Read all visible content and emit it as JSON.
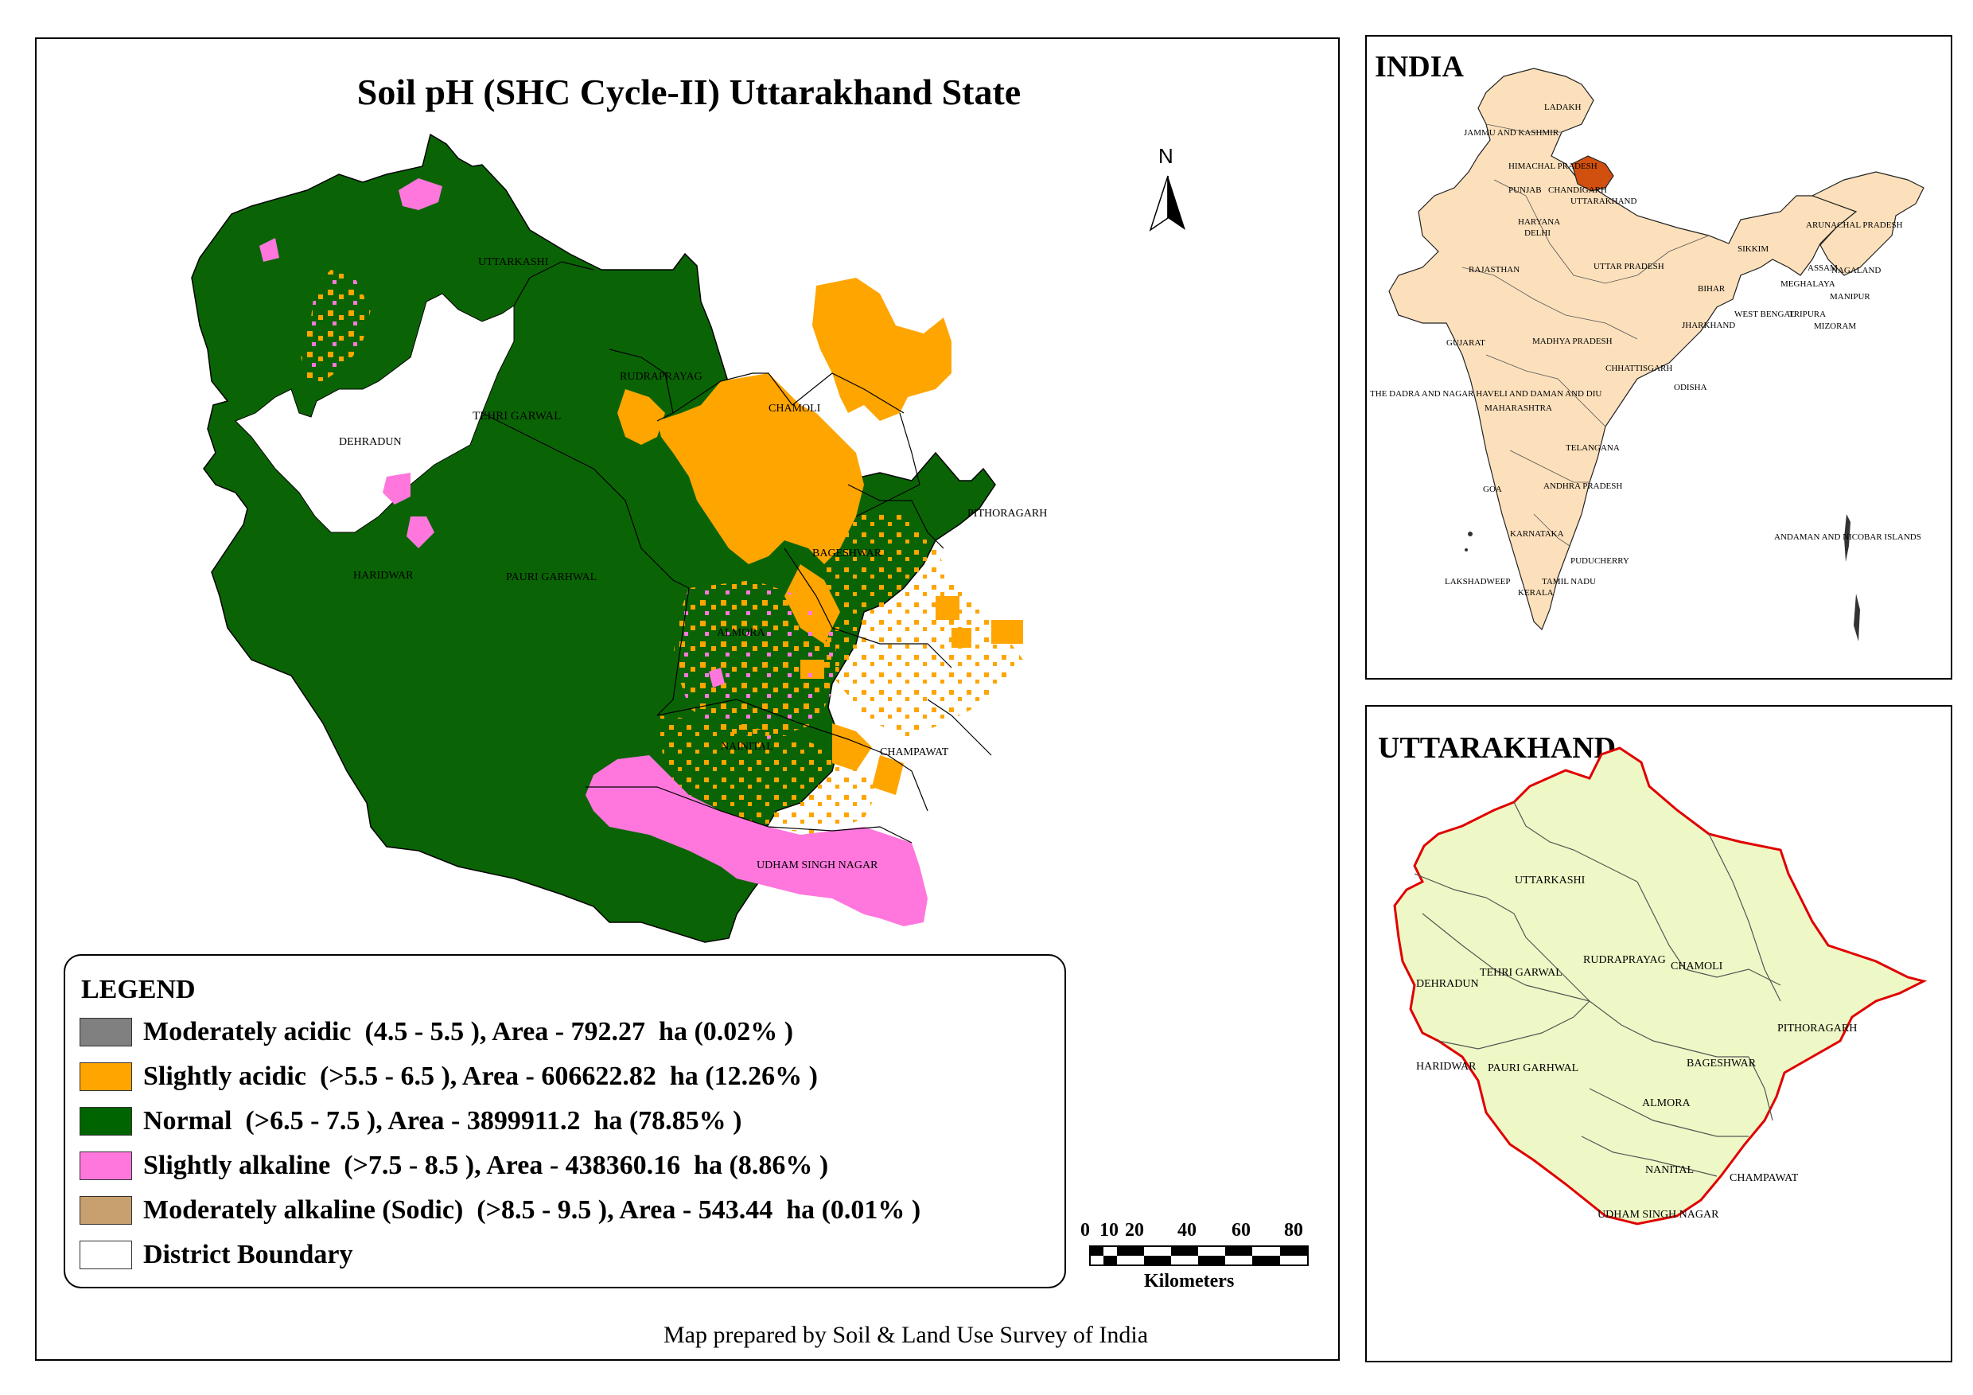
{
  "main": {
    "title": "Soil pH (SHC Cycle-II) Uttarakhand State",
    "north_label": "N",
    "districts": [
      "UTTARKASHI",
      "TEHRI GARWAL",
      "DEHRADUN",
      "RUDRAPRAYAG",
      "CHAMOLI",
      "PITHORAGARH",
      "BAGESHWAR",
      "ALMORA",
      "PAURI GARHWAL",
      "HARIDWAR",
      "NAINITAL",
      "CHAMPAWAT",
      "UDHAM SINGH NAGAR"
    ],
    "credit": "Map prepared by Soil & Land Use Survey of India"
  },
  "legend": {
    "title": "LEGEND",
    "items": [
      {
        "label": "Moderately acidic  (4.5 - 5.5 ), Area - 792.27  ha (0.02% )",
        "color": "#808080"
      },
      {
        "label": "Slightly acidic  (>5.5 - 6.5 ), Area - 606622.82  ha (12.26% )",
        "color": "#FFA500"
      },
      {
        "label": "Normal  (>6.5 - 7.5 ), Area - 3899911.2  ha (78.85% )",
        "color": "#006400"
      },
      {
        "label": "Slightly alkaline  (>7.5 - 8.5 ), Area - 438360.16  ha (8.86% )",
        "color": "#FF77DD"
      },
      {
        "label": "Moderately alkaline (Sodic)  (>8.5 - 9.5 ), Area - 543.44  ha (0.01% )",
        "color": "#C8A070"
      },
      {
        "label": "District Boundary",
        "color": "#FFFFFF"
      }
    ]
  },
  "scale_bar": {
    "ticks": [
      "0",
      "10",
      "20",
      "40",
      "60",
      "80"
    ],
    "unit": "Kilometers"
  },
  "india_inset": {
    "title": "INDIA",
    "highlight_color": "#D2500F",
    "land_color": "#FCE0BC",
    "labels": [
      "LADAKH",
      "JAMMU AND KASHMIR",
      "HIMACHAL PRADESH",
      "PUNJAB",
      "CHANDIGARH",
      "UTTARAKHAND",
      "HARYANA",
      "DELHI",
      "RAJASTHAN",
      "UTTAR PRADESH",
      "SIKKIM",
      "ARUNACHAL PRADESH",
      "ASSAM",
      "NAGALAND",
      "MEGHALAYA",
      "MANIPUR",
      "TRIPURA",
      "MIZORAM",
      "BIHAR",
      "JHARKHAND",
      "WEST BENGAL",
      "GUJARAT",
      "MADHYA PRADESH",
      "CHHATTISGARH",
      "ODISHA",
      "THE DADRA AND NAGAR HAVELI AND DAMAN AND DIU",
      "MAHARASHTRA",
      "TELANGANA",
      "ANDHRA PRADESH",
      "GOA",
      "KARNATAKA",
      "PUDUCHERRY",
      "TAMIL NADU",
      "LAKSHADWEEP",
      "KERALA",
      "ANDAMAN AND NICOBAR ISLANDS"
    ]
  },
  "uttarakhand_inset": {
    "title": "UTTARAKHAND",
    "fill_color": "#EEF8C6",
    "border_color": "#E00000",
    "labels": [
      "UTTARKASHI",
      "TEHRI GARWAL",
      "RUDRAPRAYAG",
      "CHAMOLI",
      "DEHRADUN",
      "PITHORAGARH",
      "HARIDWAR",
      "PAURI GARHWAL",
      "BAGESHWAR",
      "ALMORA",
      "NANITAL",
      "CHAMPAWAT",
      "UDHAM SINGH NAGAR"
    ]
  }
}
